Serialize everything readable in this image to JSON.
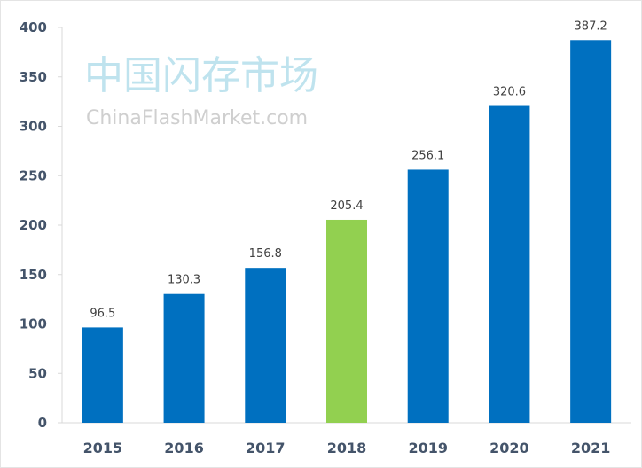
{
  "chart_data": {
    "type": "bar",
    "title": "",
    "xlabel": "",
    "ylabel": "",
    "categories": [
      "2015",
      "2016",
      "2017",
      "2018",
      "2019",
      "2020",
      "2021"
    ],
    "values": [
      96.5,
      130.3,
      156.8,
      205.4,
      256.1,
      320.6,
      387.2
    ],
    "value_labels": [
      "96.5",
      "130.3",
      "156.8",
      "205.4",
      "256.1",
      "320.6",
      "387.2"
    ],
    "ylim": [
      0,
      400
    ],
    "yticks": [
      0,
      50,
      100,
      150,
      200,
      250,
      300,
      350,
      400
    ],
    "grid": false,
    "legend": "none",
    "colors": {
      "default": "#0070c0",
      "highlight": "#92d050"
    },
    "highlight_category": "2018"
  },
  "watermark": {
    "cn": "中国闪存市场",
    "en": "ChinaFlashMarket.com"
  }
}
